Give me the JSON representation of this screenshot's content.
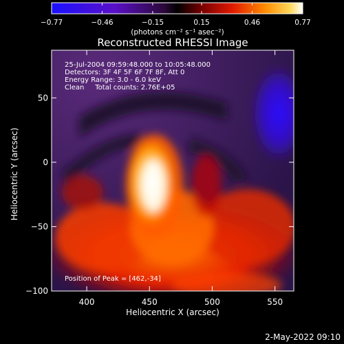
{
  "chart_data": {
    "type": "heatmap",
    "title": "Reconstructed RHESSI Image",
    "xlabel": "Heliocentric X (arcsec)",
    "ylabel": "Heliocentric Y (arcsec)",
    "xlim": [
      372,
      565
    ],
    "ylim": [
      -100,
      87
    ],
    "x_ticks": [
      "400",
      "450",
      "500",
      "550"
    ],
    "y_ticks": [
      "−100",
      "−50",
      "0",
      "50"
    ],
    "colorbar": {
      "ticks": [
        "−0.77",
        "−0.46",
        "−0.15",
        "0.15",
        "0.46",
        "0.77"
      ],
      "unit_label": "(photons cm⁻² s⁻¹ asec⁻²)",
      "range": [
        -0.77,
        0.77
      ]
    },
    "annotations": [
      "25-Jul-2004 09:59:48.000 to 10:05:48.000",
      "Detectors: 3F 4F 5F 6F 7F 8F, Att 0",
      "Energy Range: 3.0 - 6.0 keV",
      "Clean     Total counts: 2.76E+05"
    ],
    "peak_label": "Position of Peak = [462,-34]",
    "peak": {
      "x": 462,
      "y": -34
    },
    "footer": "2-May-2022 09:10",
    "grid": false
  }
}
